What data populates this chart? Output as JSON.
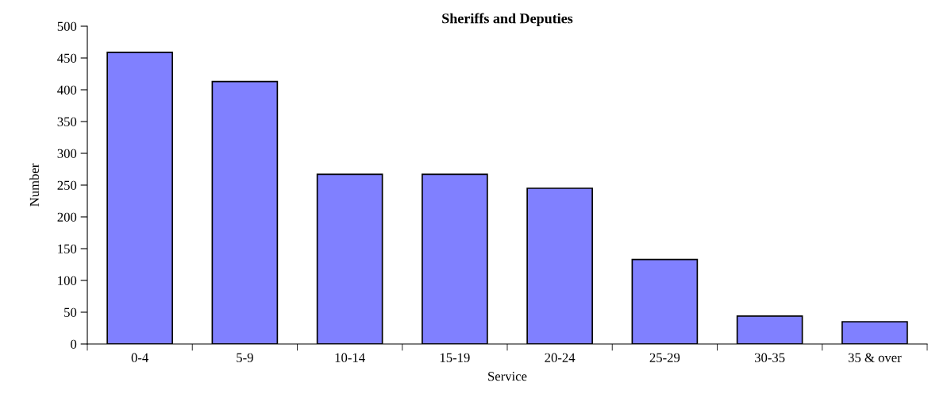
{
  "chart_data": {
    "type": "bar",
    "title": "Sheriffs and Deputies",
    "xlabel": "Service",
    "ylabel": "Number",
    "categories": [
      "0-4",
      "5-9",
      "10-14",
      "15-19",
      "20-24",
      "25-29",
      "30-35",
      "35 & over"
    ],
    "values": [
      459,
      413,
      267,
      267,
      245,
      133,
      44,
      35
    ],
    "color": "#8080ff",
    "ylim": [
      0,
      500
    ],
    "yticks": [
      0,
      50,
      100,
      150,
      200,
      250,
      300,
      350,
      400,
      450,
      500
    ],
    "grid": false,
    "legend": false
  }
}
